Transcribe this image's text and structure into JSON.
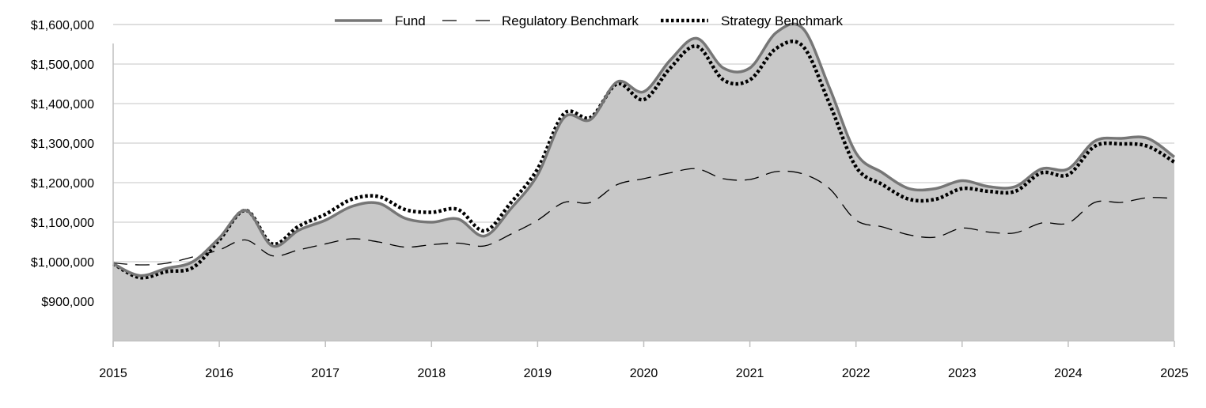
{
  "chart_data": {
    "type": "area",
    "title": "",
    "xlabel": "",
    "ylabel": "",
    "x_ticks": [
      "2015",
      "2016",
      "2017",
      "2018",
      "2019",
      "2020",
      "2021",
      "2022",
      "2023",
      "2024",
      "2025"
    ],
    "y_ticks": [
      "$900,000",
      "$1,000,000",
      "$1,100,000",
      "$1,200,000",
      "$1,300,000",
      "$1,400,000",
      "$1,500,000",
      "$1,600,000"
    ],
    "y_tick_values": [
      900000,
      1000000,
      1100000,
      1200000,
      1300000,
      1400000,
      1500000,
      1600000
    ],
    "xlim": [
      2015,
      2025
    ],
    "ylim": [
      800000,
      1600000
    ],
    "grid": "horizontal",
    "legend_position": "top-center",
    "colors": {
      "fund": "#767676",
      "fund_fill": "#c8c8c8",
      "regulatory": "#000000",
      "strategy": "#000000",
      "grid": "#d9d9d9",
      "axis": "#bfbfbf"
    },
    "series": [
      {
        "name": "Fund",
        "style": "solid-area",
        "x": [
          2015.0,
          2015.25,
          2015.5,
          2015.75,
          2016.0,
          2016.25,
          2016.5,
          2016.75,
          2017.0,
          2017.25,
          2017.5,
          2017.75,
          2018.0,
          2018.25,
          2018.5,
          2018.75,
          2019.0,
          2019.25,
          2019.5,
          2019.75,
          2020.0,
          2020.25,
          2020.5,
          2020.75,
          2021.0,
          2021.25,
          2021.5,
          2021.75,
          2022.0,
          2022.25,
          2022.5,
          2022.75,
          2023.0,
          2023.25,
          2023.5,
          2023.75,
          2024.0,
          2024.25,
          2024.5,
          2024.75,
          2025.0
        ],
        "values": [
          995000,
          965000,
          983000,
          1000000,
          1060000,
          1130000,
          1040000,
          1080000,
          1105000,
          1140000,
          1148000,
          1110000,
          1100000,
          1108000,
          1065000,
          1135000,
          1220000,
          1365000,
          1360000,
          1455000,
          1430000,
          1510000,
          1565000,
          1490000,
          1490000,
          1580000,
          1590000,
          1440000,
          1275000,
          1225000,
          1185000,
          1185000,
          1205000,
          1190000,
          1190000,
          1235000,
          1235000,
          1305000,
          1312000,
          1312000,
          1265000
        ]
      },
      {
        "name": "Regulatory Benchmark",
        "style": "dashed",
        "x": [
          2015.0,
          2015.25,
          2015.5,
          2015.75,
          2016.0,
          2016.25,
          2016.5,
          2016.75,
          2017.0,
          2017.25,
          2017.5,
          2017.75,
          2018.0,
          2018.25,
          2018.5,
          2018.75,
          2019.0,
          2019.25,
          2019.5,
          2019.75,
          2020.0,
          2020.25,
          2020.5,
          2020.75,
          2021.0,
          2021.25,
          2021.5,
          2021.75,
          2022.0,
          2022.25,
          2022.5,
          2022.75,
          2023.0,
          2023.25,
          2023.5,
          2023.75,
          2024.0,
          2024.25,
          2024.5,
          2024.75,
          2025.0
        ],
        "values": [
          997000,
          992000,
          996000,
          1012000,
          1030000,
          1055000,
          1015000,
          1030000,
          1045000,
          1058000,
          1050000,
          1037000,
          1043000,
          1047000,
          1040000,
          1070000,
          1105000,
          1150000,
          1150000,
          1195000,
          1210000,
          1225000,
          1235000,
          1210000,
          1208000,
          1228000,
          1222000,
          1185000,
          1105000,
          1088000,
          1068000,
          1062000,
          1085000,
          1075000,
          1073000,
          1098000,
          1098000,
          1150000,
          1150000,
          1162000,
          1160000
        ]
      },
      {
        "name": "Strategy Benchmark",
        "style": "dotted",
        "x": [
          2015.0,
          2015.25,
          2015.5,
          2015.75,
          2016.0,
          2016.25,
          2016.5,
          2016.75,
          2017.0,
          2017.25,
          2017.5,
          2017.75,
          2018.0,
          2018.25,
          2018.5,
          2018.75,
          2019.0,
          2019.25,
          2019.5,
          2019.75,
          2020.0,
          2020.25,
          2020.5,
          2020.75,
          2021.0,
          2021.25,
          2021.5,
          2021.75,
          2022.0,
          2022.25,
          2022.5,
          2022.75,
          2023.0,
          2023.25,
          2023.5,
          2023.75,
          2024.0,
          2024.25,
          2024.5,
          2024.75,
          2025.0
        ],
        "values": [
          995000,
          960000,
          975000,
          985000,
          1055000,
          1130000,
          1045000,
          1090000,
          1120000,
          1158000,
          1165000,
          1132000,
          1125000,
          1132000,
          1078000,
          1150000,
          1235000,
          1375000,
          1365000,
          1450000,
          1410000,
          1490000,
          1545000,
          1460000,
          1460000,
          1540000,
          1545000,
          1400000,
          1240000,
          1195000,
          1158000,
          1158000,
          1185000,
          1178000,
          1178000,
          1225000,
          1220000,
          1292000,
          1298000,
          1292000,
          1252000
        ]
      }
    ]
  }
}
